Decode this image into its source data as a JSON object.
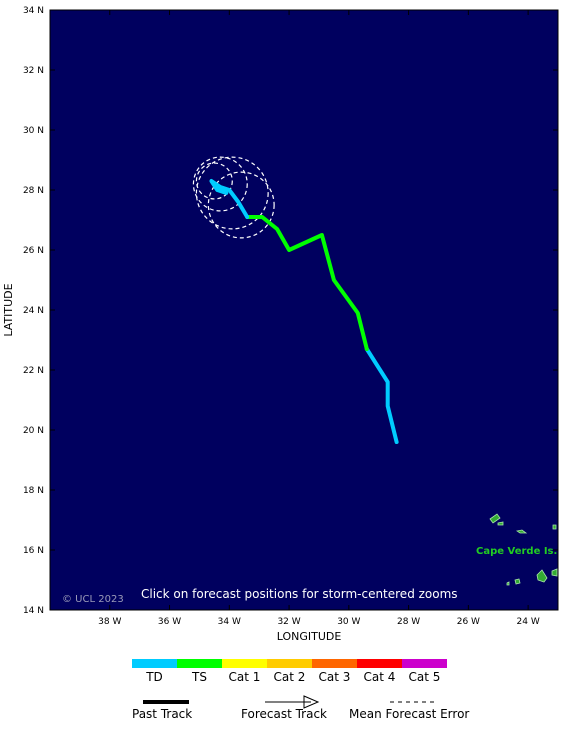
{
  "map": {
    "lat_labels": [
      "34 N",
      "32 N",
      "30 N",
      "28 N",
      "26 N",
      "24 N",
      "22 N",
      "20 N",
      "18 N",
      "16 N",
      "14 N"
    ],
    "lon_labels": [
      "38 W",
      "36 W",
      "34 W",
      "32 W",
      "30 W",
      "28 W",
      "26 W",
      "24 W"
    ],
    "x_axis_title": "LONGITUDE",
    "y_axis_title": "LATITUDE",
    "credit": "© UCL 2023",
    "hint": "Click on forecast positions for storm-centered zooms",
    "island_label": "Cape Verde Is.",
    "ocean_color": "#00005f",
    "land_color": "#33aa33"
  },
  "legend": {
    "categories": [
      {
        "label": "TD",
        "color": "#00ccff"
      },
      {
        "label": "TS",
        "color": "#00ff00"
      },
      {
        "label": "Cat 1",
        "color": "#ffff00"
      },
      {
        "label": "Cat 2",
        "color": "#ffcc00"
      },
      {
        "label": "Cat 3",
        "color": "#ff6600"
      },
      {
        "label": "Cat 4",
        "color": "#ff0000"
      },
      {
        "label": "Cat 5",
        "color": "#cc00cc"
      }
    ],
    "past_track": "Past Track",
    "forecast_track": "Forecast Track",
    "mean_error": "Mean Forecast Error"
  },
  "track": {
    "td_start": [
      {
        "lat": 19.6,
        "lon": 28.4
      },
      {
        "lat": 20.8,
        "lon": 28.7
      },
      {
        "lat": 21.6,
        "lon": 28.7
      },
      {
        "lat": 22.7,
        "lon": 29.4
      }
    ],
    "ts": [
      {
        "lat": 22.7,
        "lon": 29.4
      },
      {
        "lat": 23.9,
        "lon": 29.7
      },
      {
        "lat": 25.0,
        "lon": 30.5
      },
      {
        "lat": 26.5,
        "lon": 30.9
      },
      {
        "lat": 26.0,
        "lon": 32.0
      },
      {
        "lat": 26.7,
        "lon": 32.4
      },
      {
        "lat": 27.1,
        "lon": 32.9
      },
      {
        "lat": 27.1,
        "lon": 33.4
      }
    ],
    "td_end": [
      {
        "lat": 27.1,
        "lon": 33.4
      },
      {
        "lat": 27.6,
        "lon": 33.7
      },
      {
        "lat": 28.0,
        "lon": 34.0
      },
      {
        "lat": 28.1,
        "lon": 34.3
      },
      {
        "lat": 28.3,
        "lon": 34.6
      },
      {
        "lat": 28.0,
        "lon": 34.4
      },
      {
        "lat": 27.9,
        "lon": 34.1
      }
    ],
    "error_circles": [
      {
        "lat": 28.3,
        "lon": 34.5,
        "r_deg": 0.6
      },
      {
        "lat": 28.2,
        "lon": 34.3,
        "r_deg": 0.9
      },
      {
        "lat": 27.9,
        "lon": 33.9,
        "r_deg": 1.2
      },
      {
        "lat": 27.5,
        "lon": 33.6,
        "r_deg": 1.1
      }
    ]
  }
}
